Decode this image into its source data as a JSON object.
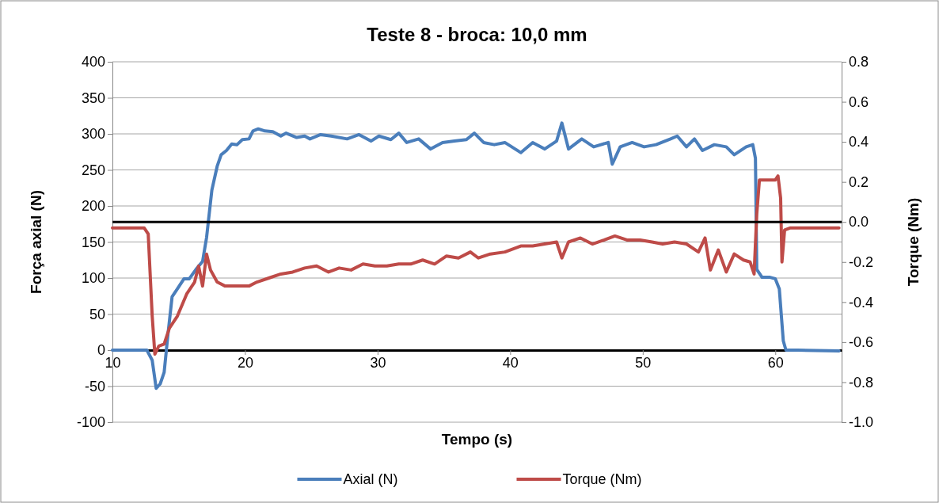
{
  "chart_data": {
    "type": "line",
    "title": "Teste 8 - broca: 10,0 mm",
    "xlabel": "Tempo (s)",
    "ylabel": "Força axial (N)",
    "y2label": "Torque (Nm)",
    "xlim": [
      10,
      65
    ],
    "xticks": [
      10,
      20,
      30,
      40,
      50,
      60
    ],
    "ylim": [
      -100,
      400
    ],
    "yticks": [
      -100,
      -50,
      0,
      50,
      100,
      150,
      200,
      250,
      300,
      350,
      400
    ],
    "y2lim": [
      -1.0,
      0.8
    ],
    "y2ticks": [
      {
        "value": -1.0,
        "label": "-1.0"
      },
      {
        "value": -0.8,
        "label": "-0.8"
      },
      {
        "value": -0.6,
        "label": "-0.6"
      },
      {
        "value": -0.4,
        "label": "-0.4"
      },
      {
        "value": -0.2,
        "label": "-0.2"
      },
      {
        "value": 0,
        "label": "0.0"
      },
      {
        "value": 0.2,
        "label": "0.2"
      },
      {
        "value": 0.4,
        "label": "0.4"
      },
      {
        "value": 0.6,
        "label": "0.6"
      },
      {
        "value": 0.8,
        "label": "0.8"
      }
    ],
    "grid": "y",
    "legend": "bottom",
    "marker": "none",
    "line_style": "solid",
    "series": [
      {
        "name": "Axial (N)",
        "color": "#4a7ebb",
        "x": [
          10,
          11.1,
          12.3,
          12.6,
          13.0,
          13.3,
          13.6,
          13.9,
          14.2,
          14.5,
          14.9,
          15.4,
          15.8,
          16.3,
          16.8,
          17.1,
          17.5,
          17.9,
          18.2,
          18.6,
          19.0,
          19.4,
          19.8,
          20.3,
          20.6,
          21.0,
          21.5,
          22.1,
          22.7,
          23.1,
          23.9,
          24.5,
          24.9,
          25.7,
          26.5,
          27.7,
          28.6,
          29.5,
          30.1,
          31.0,
          31.6,
          32.2,
          33.1,
          34.0,
          34.9,
          35.8,
          36.7,
          37.3,
          38.0,
          38.8,
          39.6,
          40.8,
          41.7,
          42.6,
          43.5,
          43.9,
          44.4,
          45.4,
          46.3,
          47.4,
          47.7,
          48.3,
          49.2,
          50.1,
          51.0,
          52.1,
          52.6,
          53.3,
          53.9,
          54.5,
          55.4,
          56.3,
          56.9,
          57.8,
          58.3,
          58.5,
          58.6,
          59.0,
          59.6,
          60.0,
          60.3,
          60.6,
          60.8,
          61.7,
          64.8
        ],
        "values": [
          0,
          0,
          0,
          0,
          -14,
          -53,
          -47,
          -31,
          24,
          74,
          85,
          99,
          99,
          112,
          123,
          156,
          222,
          255,
          271,
          277,
          286,
          285,
          292,
          293,
          304,
          307,
          304,
          303,
          297,
          301,
          295,
          297,
          293,
          299,
          297,
          293,
          299,
          290,
          297,
          292,
          301,
          288,
          293,
          279,
          288,
          290,
          292,
          301,
          288,
          285,
          288,
          274,
          288,
          279,
          290,
          315,
          279,
          293,
          282,
          288,
          258,
          282,
          288,
          282,
          285,
          293,
          297,
          282,
          293,
          277,
          285,
          282,
          271,
          282,
          285,
          266,
          112,
          101,
          101,
          99,
          85,
          13,
          0,
          0,
          -1
        ]
      },
      {
        "name": "Torque (Nm)",
        "color": "#be4b48",
        "axis": "y2",
        "x": [
          10,
          12.4,
          12.7,
          13.0,
          13.2,
          13.5,
          13.9,
          14.3,
          14.9,
          15.6,
          16.2,
          16.5,
          16.8,
          17.1,
          17.4,
          17.9,
          18.5,
          19.4,
          20.3,
          20.9,
          21.8,
          22.7,
          23.6,
          24.5,
          25.4,
          26.3,
          27.1,
          28.0,
          28.9,
          29.8,
          30.7,
          31.6,
          32.5,
          33.4,
          34.3,
          35.2,
          36.1,
          37.0,
          37.6,
          38.5,
          39.6,
          40.8,
          41.7,
          42.6,
          43.5,
          43.9,
          44.4,
          45.3,
          46.2,
          47.1,
          47.9,
          48.8,
          49.8,
          50.7,
          51.5,
          52.4,
          53.3,
          54.2,
          54.7,
          55.1,
          55.7,
          56.3,
          56.9,
          57.6,
          58.1,
          58.4,
          58.6,
          58.8,
          59.6,
          60.0,
          60.2,
          60.4,
          60.5,
          60.7,
          61.1,
          64.8
        ],
        "values": [
          -0.03,
          -0.03,
          -0.06,
          -0.47,
          -0.66,
          -0.62,
          -0.61,
          -0.53,
          -0.47,
          -0.36,
          -0.3,
          -0.22,
          -0.32,
          -0.16,
          -0.24,
          -0.3,
          -0.32,
          -0.32,
          -0.32,
          -0.3,
          -0.28,
          -0.26,
          -0.25,
          -0.23,
          -0.22,
          -0.25,
          -0.23,
          -0.24,
          -0.21,
          -0.22,
          -0.22,
          -0.21,
          -0.21,
          -0.19,
          -0.21,
          -0.17,
          -0.18,
          -0.15,
          -0.18,
          -0.16,
          -0.15,
          -0.12,
          -0.12,
          -0.11,
          -0.1,
          -0.18,
          -0.1,
          -0.08,
          -0.11,
          -0.09,
          -0.07,
          -0.09,
          -0.09,
          -0.1,
          -0.11,
          -0.1,
          -0.11,
          -0.15,
          -0.08,
          -0.24,
          -0.14,
          -0.25,
          -0.16,
          -0.19,
          -0.2,
          -0.26,
          0.04,
          0.21,
          0.21,
          0.21,
          0.23,
          0.12,
          -0.2,
          -0.04,
          -0.03,
          -0.03
        ]
      }
    ]
  }
}
